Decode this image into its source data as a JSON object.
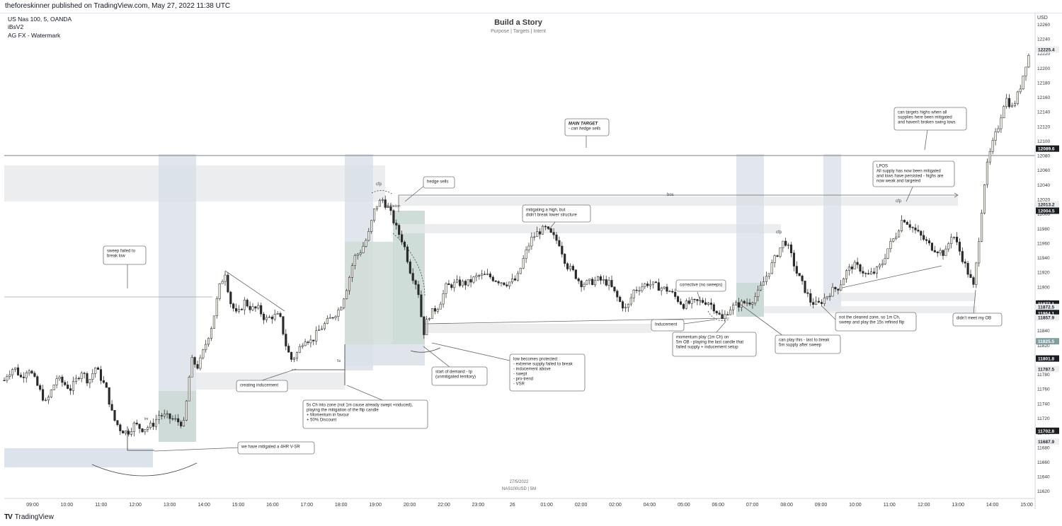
{
  "header": {
    "published": "theforeskinner published on TradingView.com, May 27, 2022 11:38 UTC",
    "symbol": "US Nas 100, 5, OANDA",
    "indicator1": "iBsV2",
    "indicator2": "AG FX - Watermark"
  },
  "main_title": "Build a Story",
  "subtitle": "Purpose | Targets | Intent",
  "footer": {
    "date": "27/5/2022",
    "symbol": "NAS100USD | 5M",
    "brand": "TradingView"
  },
  "colors": {
    "up": "#f5f0e6",
    "down": "#2b2b2b",
    "zone_blue": "#d5dde6",
    "zone_gray": "#e6e8ea",
    "zone_green": "#c9d8d3"
  },
  "chart_data": {
    "type": "candlestick",
    "title": "Build a Story",
    "currency": "USD",
    "x_ticks": [
      "09:00",
      "10:00",
      "11:00",
      "12:00",
      "13:00",
      "14:00",
      "15:00",
      "16:00",
      "17:00",
      "18:00",
      "19:00",
      "20:00",
      "22:00",
      "23:00",
      "26",
      "01:00",
      "02:00",
      "02:00",
      "04:00",
      "05:00",
      "06:00",
      "07:00",
      "08:00",
      "09:00",
      "10:00",
      "11:00",
      "12:00",
      "13:00",
      "14:00",
      "15:00"
    ],
    "y_ticks": [
      12260,
      12240,
      12220,
      12200,
      12180,
      12160,
      12140,
      12120,
      12100,
      12080,
      12060,
      12040,
      12020,
      12000,
      11980,
      11960,
      11940,
      11920,
      11900,
      11880,
      11860,
      11840,
      11820,
      11800,
      11780,
      11760,
      11740,
      11720,
      11700,
      11680,
      11660,
      11640,
      11620
    ],
    "ylim": [
      11610,
      12272
    ],
    "price_labels": [
      {
        "value": 12225.4,
        "text": "12225.4",
        "style": "light"
      },
      {
        "value": 12089.6,
        "text": "12089.6",
        "style": "dark"
      },
      {
        "value": 12013.2,
        "text": "12013.2",
        "style": "light"
      },
      {
        "value": 12004.5,
        "text": "12004.5",
        "style": "dark"
      },
      {
        "value": 11877.1,
        "text": "11877.1",
        "style": "dark"
      },
      {
        "value": 11872.5,
        "text": "11872.5",
        "style": "light"
      },
      {
        "value": 11864.1,
        "text": "11864.1",
        "style": "dark"
      },
      {
        "value": 11857.9,
        "text": "11857.9",
        "style": "light"
      },
      {
        "value": 11825.5,
        "text": "11825.5",
        "style": "teal"
      },
      {
        "value": 11801.8,
        "text": "11801.8",
        "style": "dark"
      },
      {
        "value": 11787.5,
        "text": "11787.5",
        "style": "light"
      },
      {
        "value": 11702.8,
        "text": "11702.8",
        "style": "dark"
      },
      {
        "value": 11687.9,
        "text": "11687.9",
        "style": "light"
      }
    ],
    "path_points": [
      [
        0,
        11760
      ],
      [
        10,
        11780
      ],
      [
        20,
        11790
      ],
      [
        30,
        11775
      ],
      [
        40,
        11790
      ],
      [
        55,
        11760
      ],
      [
        65,
        11740
      ],
      [
        80,
        11775
      ],
      [
        100,
        11760
      ],
      [
        115,
        11785
      ],
      [
        125,
        11770
      ],
      [
        135,
        11790
      ],
      [
        150,
        11760
      ],
      [
        160,
        11720
      ],
      [
        170,
        11705
      ],
      [
        180,
        11700
      ],
      [
        190,
        11712
      ],
      [
        200,
        11705
      ],
      [
        215,
        11710
      ],
      [
        225,
        11725
      ],
      [
        240,
        11720
      ],
      [
        260,
        11712
      ],
      [
        270,
        11800
      ],
      [
        280,
        11790
      ],
      [
        290,
        11820
      ],
      [
        300,
        11850
      ],
      [
        310,
        11900
      ],
      [
        318,
        11920
      ],
      [
        325,
        11880
      ],
      [
        335,
        11860
      ],
      [
        345,
        11880
      ],
      [
        355,
        11870
      ],
      [
        365,
        11870
      ],
      [
        375,
        11855
      ],
      [
        385,
        11860
      ],
      [
        395,
        11860
      ],
      [
        405,
        11815
      ],
      [
        412,
        11800
      ],
      [
        420,
        11810
      ],
      [
        430,
        11830
      ],
      [
        440,
        11825
      ],
      [
        450,
        11840
      ],
      [
        460,
        11850
      ],
      [
        470,
        11860
      ],
      [
        480,
        11870
      ],
      [
        490,
        11900
      ],
      [
        500,
        11940
      ],
      [
        510,
        11950
      ],
      [
        520,
        11970
      ],
      [
        530,
        12010
      ],
      [
        540,
        12020
      ],
      [
        550,
        12005
      ],
      [
        560,
        11980
      ],
      [
        570,
        11960
      ],
      [
        580,
        11920
      ],
      [
        590,
        11900
      ],
      [
        598,
        11835
      ],
      [
        605,
        11860
      ],
      [
        620,
        11875
      ],
      [
        630,
        11900
      ],
      [
        645,
        11905
      ],
      [
        660,
        11905
      ],
      [
        675,
        11915
      ],
      [
        690,
        11915
      ],
      [
        700,
        11910
      ],
      [
        715,
        11905
      ],
      [
        730,
        11910
      ],
      [
        740,
        11940
      ],
      [
        750,
        11965
      ],
      [
        760,
        11975
      ],
      [
        770,
        11980
      ],
      [
        780,
        11970
      ],
      [
        790,
        11960
      ],
      [
        800,
        11930
      ],
      [
        810,
        11920
      ],
      [
        820,
        11905
      ],
      [
        830,
        11905
      ],
      [
        845,
        11910
      ],
      [
        860,
        11905
      ],
      [
        875,
        11880
      ],
      [
        885,
        11868
      ],
      [
        895,
        11895
      ],
      [
        905,
        11900
      ],
      [
        915,
        11905
      ],
      [
        930,
        11900
      ],
      [
        945,
        11895
      ],
      [
        955,
        11885
      ],
      [
        965,
        11875
      ],
      [
        975,
        11878
      ],
      [
        990,
        11880
      ],
      [
        1000,
        11880
      ],
      [
        1010,
        11870
      ],
      [
        1020,
        11855
      ],
      [
        1030,
        11870
      ],
      [
        1040,
        11875
      ],
      [
        1050,
        11878
      ],
      [
        1060,
        11880
      ],
      [
        1070,
        11890
      ],
      [
        1080,
        11910
      ],
      [
        1090,
        11930
      ],
      [
        1100,
        11950
      ],
      [
        1108,
        11965
      ],
      [
        1115,
        11950
      ],
      [
        1125,
        11920
      ],
      [
        1135,
        11900
      ],
      [
        1145,
        11880
      ],
      [
        1155,
        11875
      ],
      [
        1165,
        11885
      ],
      [
        1175,
        11895
      ],
      [
        1185,
        11900
      ],
      [
        1195,
        11920
      ],
      [
        1205,
        11930
      ],
      [
        1215,
        11925
      ],
      [
        1225,
        11915
      ],
      [
        1235,
        11920
      ],
      [
        1245,
        11930
      ],
      [
        1255,
        11955
      ],
      [
        1265,
        11970
      ],
      [
        1275,
        11995
      ],
      [
        1285,
        11985
      ],
      [
        1295,
        11975
      ],
      [
        1305,
        11965
      ],
      [
        1315,
        11955
      ],
      [
        1325,
        11950
      ],
      [
        1335,
        11945
      ],
      [
        1345,
        11975
      ],
      [
        1355,
        11950
      ],
      [
        1365,
        11925
      ],
      [
        1375,
        11900
      ],
      [
        1380,
        11940
      ],
      [
        1385,
        11990
      ],
      [
        1390,
        12040
      ],
      [
        1395,
        12070
      ],
      [
        1400,
        12090
      ],
      [
        1410,
        12120
      ],
      [
        1420,
        12160
      ],
      [
        1430,
        12145
      ],
      [
        1440,
        12170
      ],
      [
        1450,
        12210
      ],
      [
        1456,
        12225
      ]
    ]
  },
  "annotations": {
    "sweep_failed": [
      "sweep failed to",
      "break low"
    ],
    "hedge_sells": "hedge sells",
    "main_target": [
      "MAIN TARGET",
      "- can hedge sells"
    ],
    "mitigating_high": [
      "mitigating a high, but",
      "didn't break lower structure"
    ],
    "corrective": "corrective (no sweeps)",
    "inducement": "Inducement",
    "creating_inducement": "creating inducement",
    "start_demand": [
      "start of demand - tp",
      "(unmitigated territory)"
    ],
    "low_protected": [
      "low becomes protected:",
      "- extreme supply failed to break",
      "- inducement above",
      "- swept",
      "- pro-trend",
      "- VSR"
    ],
    "five_s_ch": [
      "5s Ch into zone (not 1m cause already swept +induced),",
      "playing the mitigation of the flip candle",
      "+ Momentum in favour",
      "+ 50% Discount"
    ],
    "mitigated_4hr": "we have mitigated a 4HR V-SR",
    "momentum_play": [
      "momentum play (1m Ch) on",
      "5m OB - playing the last candle that",
      "failed supply + inducement setup"
    ],
    "can_play_this": [
      "can play this - last to break",
      "5m supply after sweep"
    ],
    "not_cleaned": [
      "not the cleaned zone, so 1m Ch,",
      "sweep and play the 15s refined flip"
    ],
    "lpos": [
      "LPOS",
      "All supply has now been mitigated",
      "and lows have persisted - highs are",
      "now weak and targeted"
    ],
    "can_target_highs": [
      "can targets highs when all",
      "supplies here been mitigated",
      "and haven't broken swing lows"
    ],
    "didnt_meet_ob": "didn't meet my OB",
    "bos": "bos",
    "cfp": "cfp",
    "liquidation": "liquidation",
    "lm": "lm",
    "five_s": "5s"
  }
}
